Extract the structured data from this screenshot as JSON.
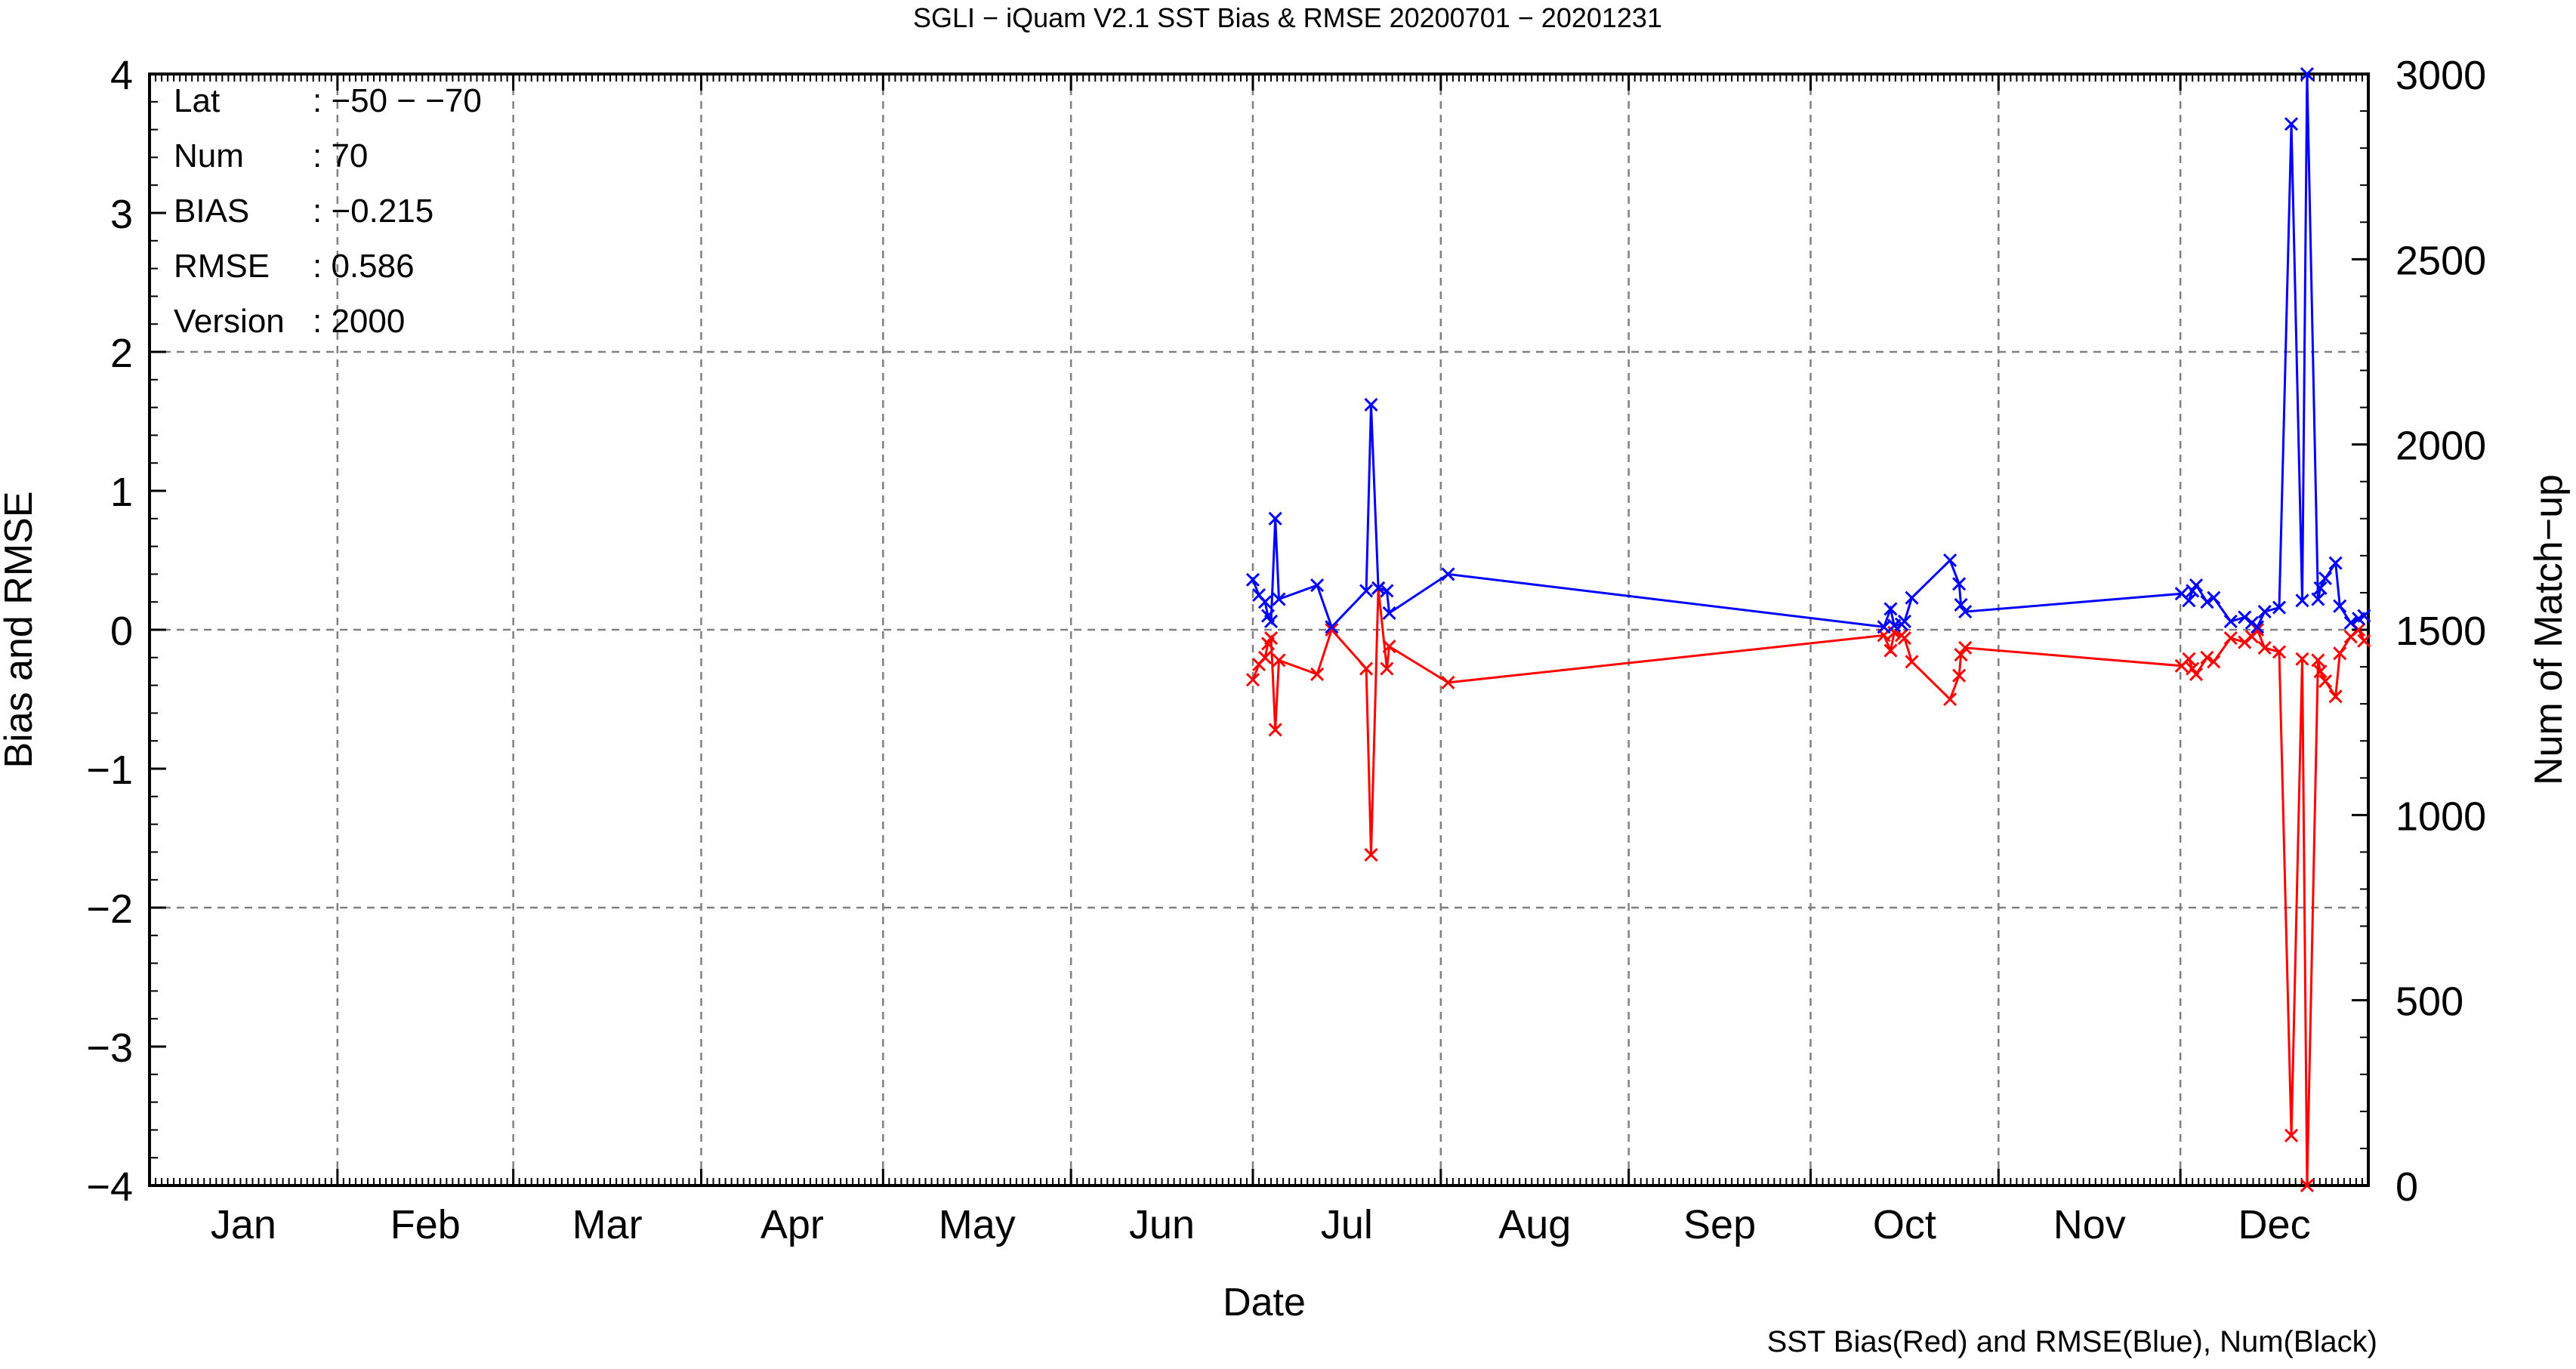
{
  "chart_data": {
    "type": "line",
    "title": "SGLI − iQuam V2.1 SST Bias & RMSE 20200701 − 20201231",
    "xlabel": "Date",
    "ylabel": "Bias and RMSE",
    "y2label": "Num of Match−up",
    "footer": "SST Bias(Red) and RMSE(Blue), Num(Black)",
    "months": [
      "Jan",
      "Feb",
      "Mar",
      "Apr",
      "May",
      "Jun",
      "Jul",
      "Aug",
      "Sep",
      "Oct",
      "Nov",
      "Dec"
    ],
    "xlim": [
      0,
      366
    ],
    "ylim": [
      -4,
      4
    ],
    "y2lim": [
      0,
      3000
    ],
    "yticks": [
      "−4",
      "−3",
      "−2",
      "−1",
      "0",
      "1",
      "2",
      "3",
      "4"
    ],
    "y2ticks": [
      "0",
      "500",
      "1000",
      "1500",
      "2000",
      "2500",
      "3000"
    ],
    "grid": true,
    "stats": [
      {
        "label": "Lat",
        "value": ": −50 − −70"
      },
      {
        "label": "Num",
        "value": ": 70"
      },
      {
        "label": "BIAS",
        "value": ": −0.215"
      },
      {
        "label": "RMSE",
        "value": ": 0.586"
      },
      {
        "label": "Version",
        "value": ": 2000"
      }
    ],
    "series": [
      {
        "color": "#ff0000",
        "x": [
          182.0,
          183.0,
          184.0,
          184.5,
          185.0,
          185.7,
          186.3,
          192.6,
          195.0,
          200.7,
          201.5,
          202.7,
          204.1,
          204.5,
          214.2,
          286.1,
          287.2,
          287.8,
          289.0,
          289.5,
          290.7,
          297.0,
          298.5,
          298.8,
          299.5,
          335.2,
          336.4,
          337.0,
          337.6,
          339.4,
          340.5,
          343.3,
          345.6,
          346.8,
          347.7,
          348.9,
          351.3,
          353.3,
          355.1,
          355.9,
          357.7,
          358.1,
          358.9,
          360.6,
          361.3,
          363.1,
          364.4,
          365.3
        ],
        "y": [
          -0.36,
          -0.25,
          -0.2,
          -0.1,
          -0.06,
          -0.72,
          -0.22,
          -0.32,
          0.0,
          -0.28,
          -1.62,
          0.3,
          -0.28,
          -0.12,
          -0.38,
          -0.04,
          -0.15,
          -0.02,
          -0.04,
          -0.06,
          -0.23,
          -0.5,
          -0.33,
          -0.18,
          -0.13,
          -0.26,
          -0.21,
          -0.28,
          -0.32,
          -0.2,
          -0.23,
          -0.06,
          -0.09,
          -0.05,
          0.0,
          -0.13,
          -0.16,
          -3.64,
          -0.21,
          -4.0,
          -0.22,
          -0.3,
          -0.37,
          -0.48,
          -0.17,
          -0.05,
          0.0,
          -0.08
        ]
      },
      {
        "color": "#0000ff",
        "x": [
          182.0,
          183.0,
          184.0,
          184.5,
          185.0,
          185.7,
          186.3,
          192.6,
          195.0,
          200.7,
          201.5,
          202.7,
          204.1,
          204.5,
          214.2,
          286.1,
          287.2,
          287.8,
          289.0,
          289.5,
          290.7,
          297.0,
          298.5,
          298.8,
          299.5,
          335.2,
          336.4,
          337.0,
          337.6,
          339.4,
          340.5,
          343.3,
          345.6,
          346.8,
          347.7,
          348.9,
          351.3,
          353.3,
          355.1,
          355.9,
          357.7,
          358.1,
          358.9,
          360.6,
          361.3,
          363.1,
          364.4,
          365.3
        ],
        "y": [
          0.36,
          0.25,
          0.2,
          0.1,
          0.06,
          0.8,
          0.22,
          0.32,
          0.02,
          0.28,
          1.62,
          0.3,
          0.28,
          0.12,
          0.4,
          0.02,
          0.15,
          0.03,
          0.04,
          0.06,
          0.23,
          0.5,
          0.33,
          0.18,
          0.13,
          0.26,
          0.21,
          0.28,
          0.32,
          0.2,
          0.23,
          0.06,
          0.09,
          0.05,
          0.02,
          0.13,
          0.16,
          3.64,
          0.21,
          4.0,
          0.22,
          0.3,
          0.37,
          0.48,
          0.17,
          0.05,
          0.08,
          0.1
        ]
      }
    ]
  }
}
